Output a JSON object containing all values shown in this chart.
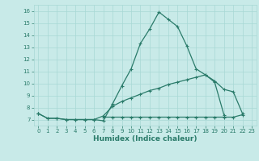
{
  "title": "",
  "xlabel": "Humidex (Indice chaleur)",
  "ylabel": "",
  "x_values": [
    0,
    1,
    2,
    3,
    4,
    5,
    6,
    7,
    8,
    9,
    10,
    11,
    12,
    13,
    14,
    15,
    16,
    17,
    18,
    19,
    20,
    21,
    22,
    23
  ],
  "line1_y": [
    7.5,
    7.1,
    7.1,
    7.0,
    7.0,
    7.0,
    7.0,
    6.9,
    8.3,
    9.8,
    11.2,
    13.3,
    14.5,
    15.9,
    15.3,
    14.7,
    13.1,
    11.2,
    10.7,
    10.2,
    9.5,
    9.3,
    7.5,
    null
  ],
  "line2_y": [
    7.5,
    7.1,
    7.1,
    7.0,
    7.0,
    7.0,
    7.0,
    7.3,
    8.1,
    8.5,
    8.8,
    9.1,
    9.4,
    9.6,
    9.9,
    10.1,
    10.3,
    10.5,
    10.7,
    10.1,
    7.4,
    null,
    null,
    null
  ],
  "line3_y": [
    7.5,
    null,
    null,
    null,
    null,
    null,
    null,
    7.2,
    7.2,
    7.2,
    7.2,
    7.2,
    7.2,
    7.2,
    7.2,
    7.2,
    7.2,
    7.2,
    7.2,
    7.2,
    7.2,
    7.2,
    7.4,
    null
  ],
  "line_color": "#2a7b6a",
  "marker": "+",
  "markersize": 3.5,
  "linewidth": 0.9,
  "ylim": [
    6.5,
    16.5
  ],
  "xlim": [
    -0.5,
    23.5
  ],
  "yticks": [
    7,
    8,
    9,
    10,
    11,
    12,
    13,
    14,
    15,
    16
  ],
  "xticks": [
    0,
    1,
    2,
    3,
    4,
    5,
    6,
    7,
    8,
    9,
    10,
    11,
    12,
    13,
    14,
    15,
    16,
    17,
    18,
    19,
    20,
    21,
    22,
    23
  ],
  "bg_color": "#c8eae8",
  "grid_color": "#a8d8d5",
  "tick_fontsize": 5.0,
  "xlabel_fontsize": 6.5,
  "tick_color": "#2a7b6a"
}
